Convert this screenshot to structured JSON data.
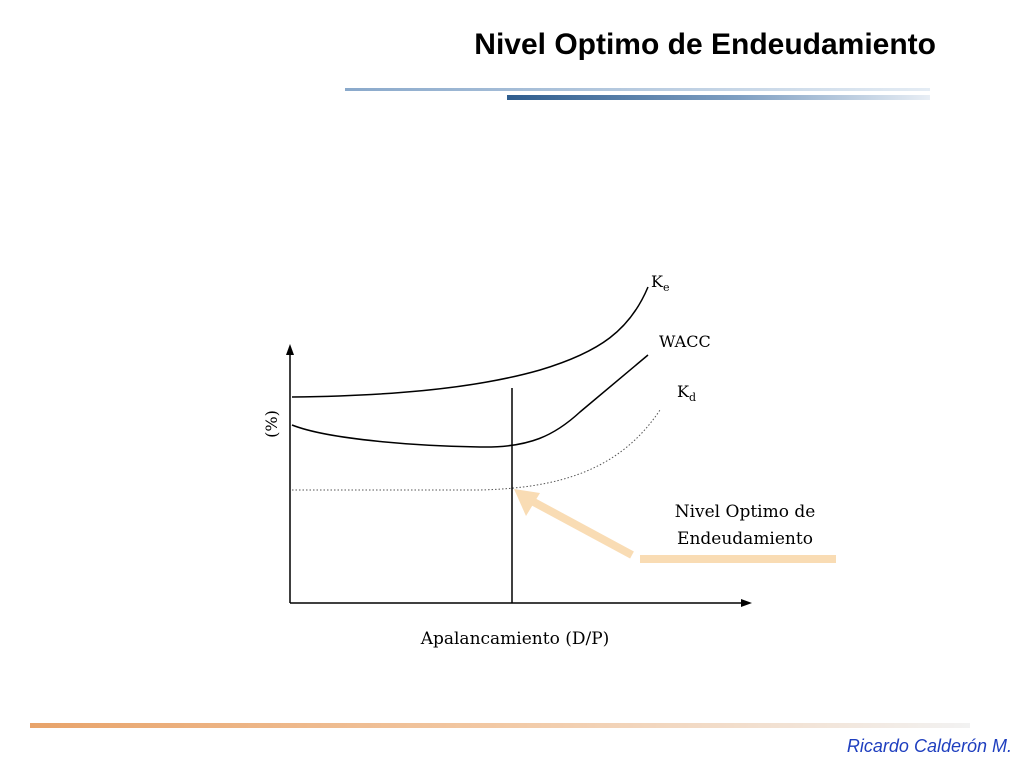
{
  "slide": {
    "title": "Nivel Optimo de Endeudamiento",
    "author": "Ricardo Calderón M."
  },
  "colors": {
    "title_rule_light": "#b8cbe0",
    "title_rule_dark": "#3f6ea0",
    "footer_rule_start": "#e8a36a",
    "footer_rule_end": "#f0f0f0",
    "arrow_fill": "#f9dcb4",
    "footer_text": "#1f3fbf",
    "ink": "#000000"
  },
  "diagram": {
    "y_axis_label": "(%)",
    "x_axis_label": "Apalancamiento (D/P)",
    "curves": {
      "ke": {
        "label_main": "K",
        "label_sub": "e"
      },
      "wacc": {
        "label": "WACC"
      },
      "kd": {
        "label_main": "K",
        "label_sub": "d"
      }
    },
    "annotation": {
      "line1": "Nivel Optimo de",
      "line2": "Endeudamiento"
    }
  }
}
